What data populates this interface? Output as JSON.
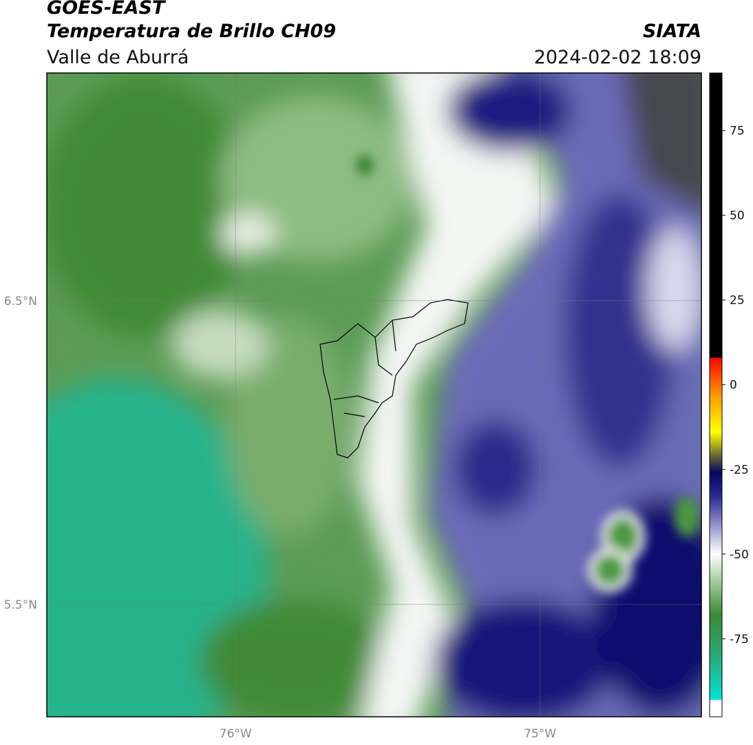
{
  "chart_data": {
    "type": "map",
    "title": "GOES-EAST",
    "subtitle": "Temperatura de Brillo CH09",
    "region": "Valle de Aburrá",
    "source": "SIATA",
    "timestamp": "2024-02-02 18:09",
    "xlim": [
      -76.62,
      -74.47
    ],
    "ylim": [
      5.13,
      7.25
    ],
    "xticks": [
      {
        "value": -76,
        "label": "76°W"
      },
      {
        "value": -75,
        "label": "75°W"
      }
    ],
    "yticks": [
      {
        "value": 5.5,
        "label": "5.5°N"
      },
      {
        "value": 6.5,
        "label": "6.5°N"
      }
    ],
    "grid": true,
    "colorbar": {
      "clim": [
        -98,
        92
      ],
      "ticks": [
        -75,
        -50,
        -25,
        0,
        25,
        50,
        75
      ],
      "colormap": [
        {
          "value": -98,
          "color": "#ffffff"
        },
        {
          "value": -93,
          "color": "#ffffff"
        },
        {
          "value": -93,
          "color": "#00e5d8"
        },
        {
          "value": -80,
          "color": "#2aa878"
        },
        {
          "value": -68,
          "color": "#3a8a34"
        },
        {
          "value": -60,
          "color": "#8fbf85"
        },
        {
          "value": -50,
          "color": "#ffffff"
        },
        {
          "value": -42,
          "color": "#9a9ad0"
        },
        {
          "value": -33,
          "color": "#2a2a90"
        },
        {
          "value": -26,
          "color": "#050560"
        },
        {
          "value": -21,
          "color": "#666633"
        },
        {
          "value": -14,
          "color": "#ffff00"
        },
        {
          "value": -3,
          "color": "#ff9900"
        },
        {
          "value": 8,
          "color": "#ff0000"
        },
        {
          "value": 8,
          "color": "#000000"
        },
        {
          "value": 92,
          "color": "#000000"
        }
      ]
    }
  }
}
